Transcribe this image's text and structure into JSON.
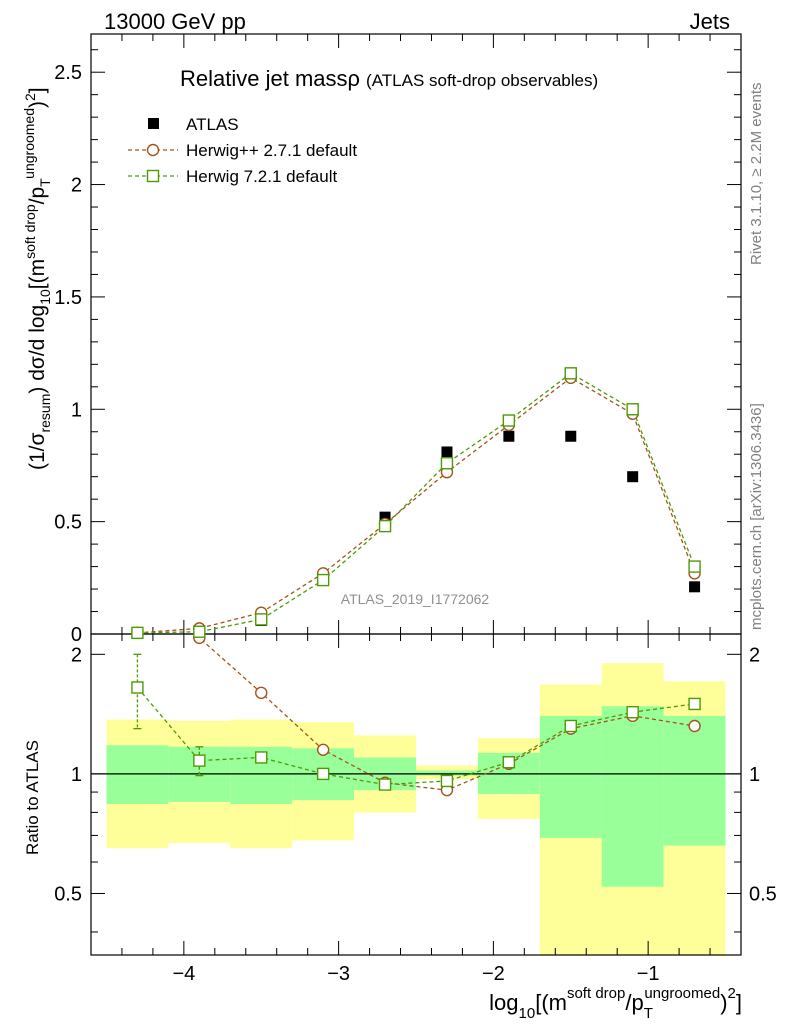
{
  "header": {
    "energy": "13000 GeV pp",
    "category": "Jets"
  },
  "side": {
    "rivet": "Rivet 3.1.10, ≥ 2.2M events",
    "mcplots": "mcplots.cern.ch [arXiv:1306.3436]"
  },
  "chart_data": {
    "type": "scatter",
    "title": "Relative jet massρ",
    "subtitle": "(ATLAS soft-drop observables)",
    "analysis_id": "ATLAS_2019_I1772062",
    "xlabel": {
      "base": "log",
      "base_sub": "10",
      "open": "[(m",
      "num_sup": "soft drop",
      "slash": "/p",
      "den_sub": "T",
      "den_sup": "ungroomed",
      "close": ")",
      "pow_sup": "2",
      "end": "]"
    },
    "ylabel": {
      "p1": "(1/σ",
      "s1": "resum",
      "p2": ") dσ/d log",
      "s2": "10",
      "p3": "[(m",
      "u3": "soft drop",
      "p4": "/p",
      "s4": "T",
      "u4": "ungroomed",
      "p5": ")",
      "u5": "2",
      "p6": "]"
    },
    "ratio_ylabel": "Ratio to ATLAS",
    "xlim": [
      -4.6,
      -0.4
    ],
    "ylim": [
      0,
      2.67
    ],
    "ratio_ylim": [
      0.35,
      2.25
    ],
    "xticks": [
      -4,
      -3,
      -2,
      -1
    ],
    "xtick_labels": [
      "−4",
      "−3",
      "−2",
      "−1"
    ],
    "yticks": [
      0,
      0.5,
      1,
      1.5,
      2,
      2.5
    ],
    "ytick_labels": [
      "0",
      "0.5",
      "1",
      "1.5",
      "2",
      "2.5"
    ],
    "ratio_yticks": [
      0.5,
      1,
      2
    ],
    "ratio_ytick_labels": [
      "0.5",
      "1",
      "2"
    ],
    "bins": [
      -4.5,
      -4.1,
      -3.7,
      -3.3,
      -2.9,
      -2.5,
      -2.1,
      -1.7,
      -1.3,
      -0.9,
      -0.5
    ],
    "x": [
      -4.3,
      -3.9,
      -3.5,
      -3.1,
      -2.7,
      -2.3,
      -1.9,
      -1.5,
      -1.1,
      -0.7
    ],
    "series": [
      {
        "name": "ATLAS",
        "style": "data",
        "color": "#000000",
        "values": [
          0.005,
          0.015,
          0.06,
          0.24,
          0.52,
          0.81,
          0.88,
          0.88,
          0.7,
          0.21
        ]
      },
      {
        "name": "Herwig++ 2.7.1 default",
        "style": "circle",
        "color": "#a0561c",
        "values": [
          0.005,
          0.025,
          0.095,
          0.27,
          0.49,
          0.72,
          0.93,
          1.14,
          0.98,
          0.27
        ],
        "ratio": [
          null,
          2.2,
          1.6,
          1.15,
          0.95,
          0.91,
          1.06,
          1.3,
          1.4,
          1.32
        ],
        "ratio_err": [
          null,
          null,
          null,
          null,
          null,
          null,
          null,
          null,
          null,
          null
        ]
      },
      {
        "name": "Herwig 7.2.1 default",
        "style": "square",
        "color": "#4e9a06",
        "values": [
          0.005,
          0.01,
          0.065,
          0.24,
          0.48,
          0.76,
          0.95,
          1.16,
          1.0,
          0.3
        ],
        "ratio": [
          1.65,
          1.08,
          1.1,
          1.0,
          0.94,
          0.96,
          1.07,
          1.32,
          1.43,
          1.5
        ],
        "ratio_err": [
          0.35,
          0.09,
          0.03,
          0,
          0,
          0,
          0,
          0,
          0,
          0
        ]
      }
    ],
    "bands": {
      "yellow_color": "#ffff99",
      "green_color": "#99ff99",
      "yellow": [
        [
          0.65,
          1.37
        ],
        [
          0.67,
          1.36
        ],
        [
          0.65,
          1.37
        ],
        [
          0.68,
          1.35
        ],
        [
          0.8,
          1.25
        ],
        [
          0.97,
          1.05
        ],
        [
          0.77,
          1.23
        ],
        [
          0.3,
          1.68
        ],
        [
          0.3,
          1.9
        ],
        [
          0.3,
          1.71
        ]
      ],
      "green": [
        [
          0.84,
          1.18
        ],
        [
          0.85,
          1.17
        ],
        [
          0.84,
          1.17
        ],
        [
          0.86,
          1.16
        ],
        [
          0.91,
          1.1
        ],
        [
          0.99,
          1.02
        ],
        [
          0.89,
          1.13
        ],
        [
          0.69,
          1.4
        ],
        [
          0.52,
          1.48
        ],
        [
          0.66,
          1.4
        ]
      ]
    }
  }
}
